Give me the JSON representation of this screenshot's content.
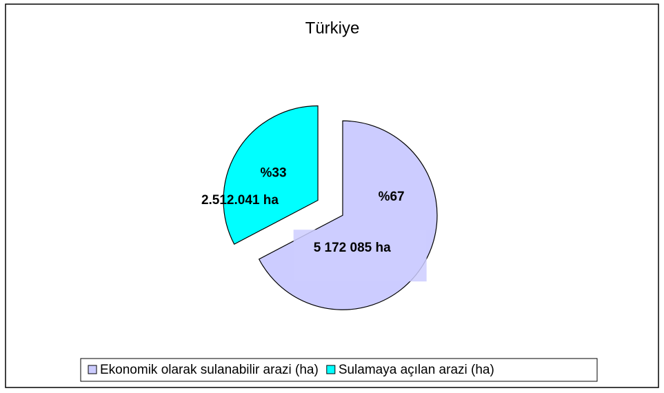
{
  "chart_data": {
    "type": "pie",
    "title": "Türkiye",
    "categories": [
      "Ekonomik olarak sulanabilir arazi (ha)",
      "Sulamaya açılan arazi (ha)"
    ],
    "values": [
      5172085,
      2512041
    ],
    "value_labels": [
      "5 172 085 ha",
      "2.512.041 ha"
    ],
    "percentages": [
      67,
      33
    ],
    "percent_labels": [
      "%67",
      "%33"
    ],
    "colors": [
      "#ccccff",
      "#00ffff"
    ],
    "legend": "bottom"
  }
}
